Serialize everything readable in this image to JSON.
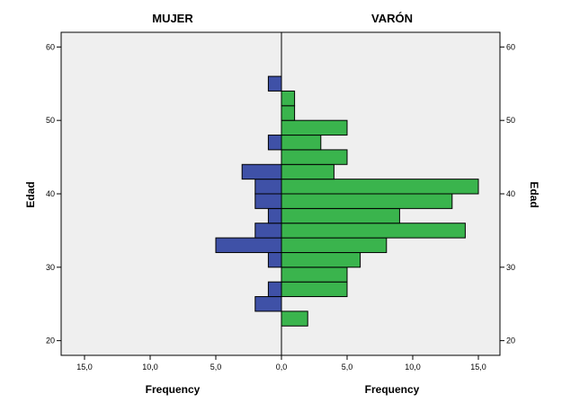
{
  "chart_data": {
    "type": "bar",
    "orientation": "horizontal",
    "layout": "population-pyramid",
    "panels": [
      {
        "name": "MUJER",
        "side": "left",
        "xlabel": "Frequency",
        "color": "#3f51a7"
      },
      {
        "name": "VARÓN",
        "side": "right",
        "xlabel": "Frequency",
        "color": "#3ab44d"
      }
    ],
    "ylabel": "Edad",
    "xlim": [
      0,
      17.5
    ],
    "ylim": [
      18,
      62
    ],
    "bin_width": 2,
    "x_ticks": [
      0,
      5,
      10,
      15
    ],
    "x_tick_labels": {
      "left": [
        "0,0",
        "5,0",
        "10,0",
        "15,0"
      ],
      "right": [
        "0,0",
        "5,0",
        "10,0",
        "15,0"
      ]
    },
    "y_ticks": [
      20,
      30,
      40,
      50,
      60
    ],
    "bins": [
      23,
      25,
      27,
      29,
      31,
      33,
      35,
      37,
      39,
      41,
      43,
      45,
      47,
      49,
      51,
      53,
      55
    ],
    "series": [
      {
        "name": "MUJER",
        "values": [
          0,
          2,
          1,
          0,
          1,
          5,
          2,
          1,
          2,
          2,
          3,
          0,
          1,
          0,
          0,
          0,
          1
        ]
      },
      {
        "name": "VARÓN",
        "values": [
          2,
          0,
          5,
          5,
          6,
          8,
          14,
          9,
          13,
          15,
          4,
          5,
          3,
          5,
          1,
          1,
          0
        ]
      }
    ],
    "colors": {
      "background": "#efefef",
      "mujer": "#3f51a7",
      "varon": "#3ab44d"
    },
    "grid": false
  }
}
